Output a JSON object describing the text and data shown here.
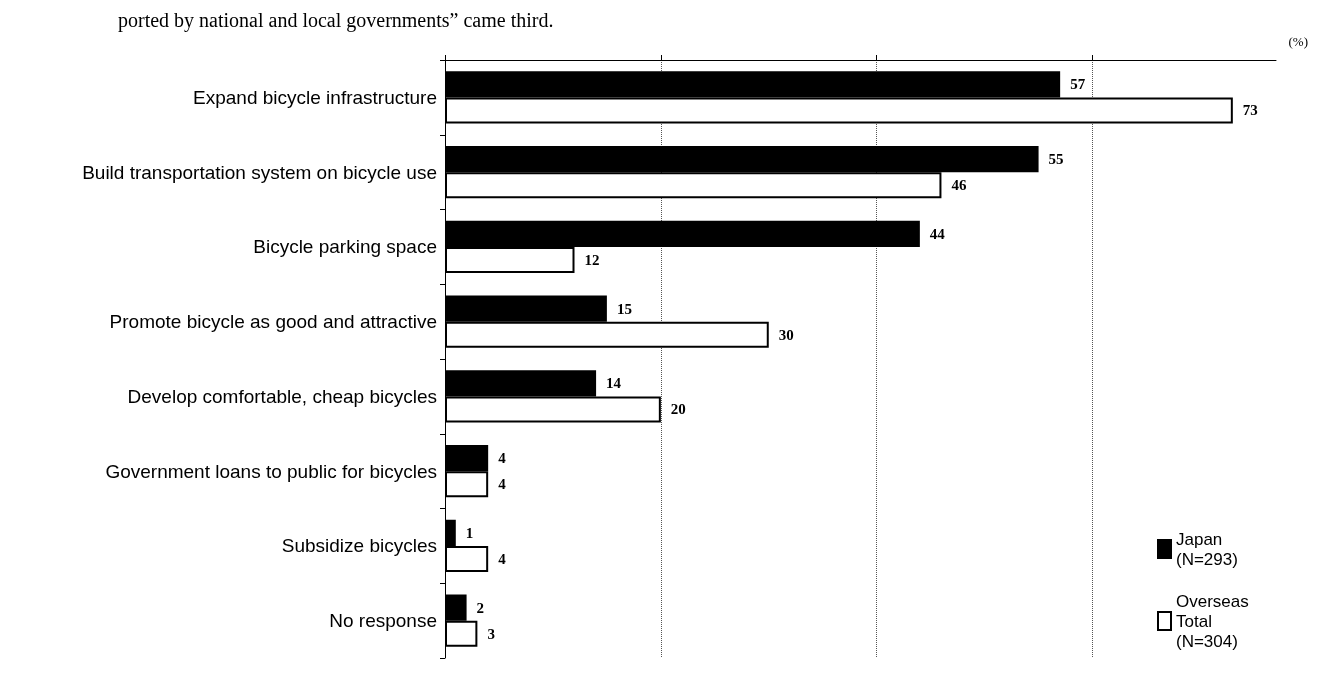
{
  "chart_data": {
    "type": "bar",
    "orientation": "horizontal",
    "xlabel": "(%)",
    "annotations": [
      "ported by national and local governments” came third."
    ],
    "categories": [
      "Expand bicycle infrastructure",
      "Build transportation system on bicycle use",
      "Bicycle parking space",
      "Promote bicycle as good and attractive",
      "Develop comfortable, cheap bicycles",
      "Government loans to public for bicycles",
      "Subsidize bicycles",
      "No response"
    ],
    "series": [
      {
        "name": "Japan (N=293)",
        "color": "#000000",
        "values": [
          57,
          55,
          44,
          15,
          14,
          4,
          1,
          2
        ]
      },
      {
        "name": "Overseas Total (N=304)",
        "color": "#ffffff",
        "values": [
          73,
          46,
          12,
          30,
          20,
          4,
          4,
          3
        ]
      }
    ],
    "xlim": [
      0,
      77
    ],
    "xticks": [
      {
        "value": 0,
        "label": null
      },
      {
        "value": 20,
        "label": null
      },
      {
        "value": 40,
        "label": null
      },
      {
        "value": 60,
        "label": null
      }
    ],
    "tick_labels": "y",
    "grid": "x",
    "data_labels": true,
    "legend": "bottom right"
  }
}
